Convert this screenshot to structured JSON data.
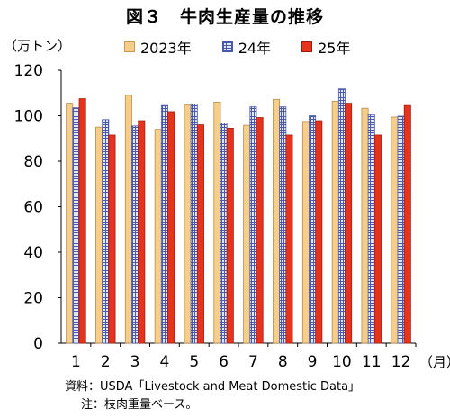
{
  "title": "図３　牛肉生産量の推移",
  "notes": {
    "source": "資料：USDA「Livestock and Meat Domestic Data」",
    "note": "注：枝肉重量ベース。"
  },
  "colors": {
    "y2023": "#f7cd8a",
    "y24": "#4a5aa8",
    "y25": "#e8331c"
  },
  "chart_data": {
    "type": "bar",
    "ylabel": "（万トン）",
    "xlabel": "（月）",
    "ylim": [
      0,
      120
    ],
    "yticks": [
      0,
      20,
      40,
      60,
      80,
      100,
      120
    ],
    "grid": false,
    "legend_position": "top",
    "categories": [
      "1",
      "2",
      "3",
      "4",
      "5",
      "6",
      "7",
      "8",
      "9",
      "10",
      "11",
      "12"
    ],
    "series": [
      {
        "name": "2023年",
        "values": [
          105.5,
          95.0,
          109.0,
          94.0,
          104.7,
          106.0,
          95.8,
          107.2,
          97.5,
          106.4,
          103.3,
          99.4
        ]
      },
      {
        "name": "24年",
        "values": [
          103.5,
          98.3,
          95.5,
          104.5,
          105.2,
          96.8,
          103.9,
          103.9,
          100.0,
          111.8,
          100.5,
          99.8
        ]
      },
      {
        "name": "25年",
        "values": [
          107.5,
          91.5,
          97.8,
          101.8,
          96.0,
          94.5,
          99.2,
          91.5,
          97.8,
          105.5,
          91.5,
          104.5
        ]
      }
    ]
  }
}
